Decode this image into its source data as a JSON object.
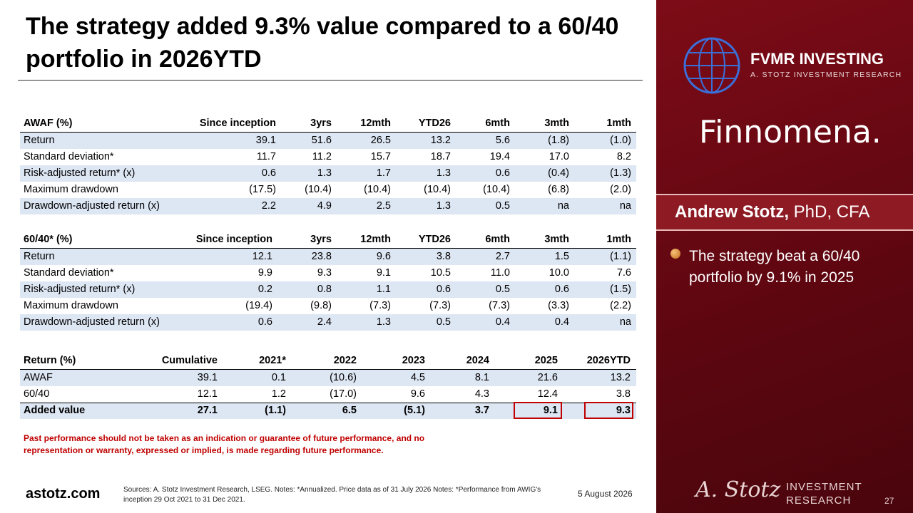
{
  "title": "The strategy added 9.3% value compared to a 60/40 portfolio in 2026YTD",
  "tables": [
    {
      "columns": [
        "AWAF (%)",
        "Since inception",
        "3yrs",
        "12mth",
        "YTD26",
        "6mth",
        "3mth",
        "1mth"
      ],
      "rows": [
        [
          "Return",
          "39.1",
          "51.6",
          "26.5",
          "13.2",
          "5.6",
          "(1.8)",
          "(1.0)"
        ],
        [
          "Standard deviation*",
          "11.7",
          "11.2",
          "15.7",
          "18.7",
          "19.4",
          "17.0",
          "8.2"
        ],
        [
          "Risk-adjusted return* (x)",
          "0.6",
          "1.3",
          "1.7",
          "1.3",
          "0.6",
          "(0.4)",
          "(1.3)"
        ],
        [
          "Maximum drawdown",
          "(17.5)",
          "(10.4)",
          "(10.4)",
          "(10.4)",
          "(10.4)",
          "(6.8)",
          "(2.0)"
        ],
        [
          "Drawdown-adjusted return (x)",
          "2.2",
          "4.9",
          "2.5",
          "1.3",
          "0.5",
          "na",
          "na"
        ]
      ]
    },
    {
      "columns": [
        "60/40* (%)",
        "Since inception",
        "3yrs",
        "12mth",
        "YTD26",
        "6mth",
        "3mth",
        "1mth"
      ],
      "rows": [
        [
          "Return",
          "12.1",
          "23.8",
          "9.6",
          "3.8",
          "2.7",
          "1.5",
          "(1.1)"
        ],
        [
          "Standard deviation*",
          "9.9",
          "9.3",
          "9.1",
          "10.5",
          "11.0",
          "10.0",
          "7.6"
        ],
        [
          "Risk-adjusted return* (x)",
          "0.2",
          "0.8",
          "1.1",
          "0.6",
          "0.5",
          "0.6",
          "(1.5)"
        ],
        [
          "Maximum drawdown",
          "(19.4)",
          "(9.8)",
          "(7.3)",
          "(7.3)",
          "(7.3)",
          "(3.3)",
          "(2.2)"
        ],
        [
          "Drawdown-adjusted return (x)",
          "0.6",
          "2.4",
          "1.3",
          "0.5",
          "0.4",
          "0.4",
          "na"
        ]
      ]
    },
    {
      "columns": [
        "Return (%)",
        "Cumulative",
        "2021*",
        "2022",
        "2023",
        "2024",
        "2025",
        "2026YTD"
      ],
      "rows": [
        [
          "AWAF",
          "39.1",
          "0.1",
          "(10.6)",
          "4.5",
          "8.1",
          "21.6",
          "13.2"
        ],
        [
          "60/40",
          "12.1",
          "1.2",
          "(17.0)",
          "9.6",
          "4.3",
          "12.4",
          "3.8"
        ],
        [
          "Added value",
          "27.1",
          "(1.1)",
          "6.5",
          "(5.1)",
          "3.7",
          "9.1",
          "9.3"
        ]
      ]
    }
  ],
  "disclaimer": "Past performance should not be taken as an indication or guarantee of future performance, and no representation or warranty, expressed or implied, is made regarding future performance.",
  "website": "astotz.com",
  "sources": "Sources: A. Stotz Investment Research, LSEG. Notes: *Annualized. Price data as of 31 July 2026 Notes: *Performance from AWIG's inception 29 Oct 2021 to 31 Dec 2021.",
  "date": "5 August 2026",
  "sidebar": {
    "brand": "FVMR INVESTING",
    "brand_sub": "A. STOTZ INVESTMENT RESEARCH",
    "partner": "Finnomena.",
    "name": "Andrew Stotz,",
    "credentials": "PhD, CFA",
    "bullet": "The strategy beat a 60/40 portfolio by 9.1% in 2025",
    "signature": "A. Stotz",
    "footer_brand": "INVESTMENT RESEARCH",
    "page": "27"
  }
}
